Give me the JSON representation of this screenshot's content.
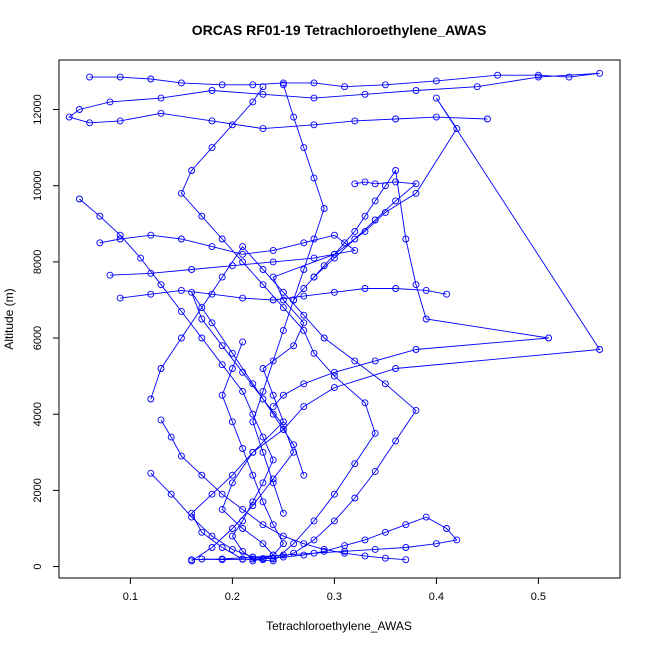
{
  "chart_data": {
    "type": "line",
    "title": "ORCAS RF01-19 Tetrachloroethylene_AWAS",
    "xlabel": "Tetrachloroethylene_AWAS",
    "ylabel": "Altitude (m)",
    "xlim": [
      0.03,
      0.58
    ],
    "ylim": [
      -300,
      13300
    ],
    "xticks": [
      0.1,
      0.2,
      0.3,
      0.4,
      0.5
    ],
    "yticks": [
      0,
      2000,
      4000,
      6000,
      8000,
      10000,
      12000
    ],
    "grid": false,
    "legend": "none",
    "marker": "open-circle",
    "color": "#0000ff",
    "series": [
      {
        "x": [
          0.22,
          0.24,
          0.23,
          0.21,
          0.19,
          0.2,
          0.22,
          0.25,
          0.24,
          0.23,
          0.26,
          0.27,
          0.25,
          0.24,
          0.3,
          0.33,
          0.35,
          0.38,
          0.42,
          0.4,
          0.56,
          0.36,
          0.3,
          0.27,
          0.25,
          0.22,
          0.2,
          0.18,
          0.16,
          0.17,
          0.19,
          0.21,
          0.24,
          0.26,
          0.28,
          0.3,
          0.32,
          0.34,
          0.33,
          0.3,
          0.28,
          0.27,
          0.25,
          0.23,
          0.21,
          0.19,
          0.17,
          0.15,
          0.16,
          0.18,
          0.2,
          0.22,
          0.23
        ],
        "y": [
          150,
          300,
          600,
          1000,
          1500,
          2200,
          3000,
          3800,
          4500,
          5200,
          5800,
          6400,
          7000,
          7600,
          8200,
          8800,
          9300,
          9800,
          11500,
          12300,
          5700,
          5200,
          4700,
          4200,
          3600,
          3000,
          2400,
          1900,
          1400,
          900,
          500,
          200,
          150,
          600,
          1200,
          1900,
          2700,
          3500,
          4300,
          5000,
          5600,
          6200,
          6800,
          7400,
          8000,
          8600,
          9200,
          9800,
          10400,
          11000,
          11600,
          12200,
          12600
        ]
      },
      {
        "x": [
          0.06,
          0.09,
          0.12,
          0.15,
          0.19,
          0.22,
          0.25,
          0.28,
          0.31,
          0.35,
          0.4,
          0.46,
          0.5,
          0.53,
          0.56,
          0.5,
          0.44,
          0.38,
          0.33,
          0.28,
          0.23,
          0.18,
          0.13,
          0.08,
          0.05,
          0.04,
          0.06,
          0.09,
          0.13,
          0.18,
          0.23,
          0.28,
          0.32,
          0.36,
          0.4,
          0.45
        ],
        "y": [
          12850,
          12850,
          12800,
          12700,
          12650,
          12650,
          12700,
          12700,
          12600,
          12650,
          12750,
          12900,
          12900,
          12850,
          12950,
          12850,
          12600,
          12500,
          12400,
          12300,
          12400,
          12500,
          12300,
          12200,
          12000,
          11800,
          11650,
          11700,
          11900,
          11700,
          11500,
          11600,
          11700,
          11750,
          11800,
          11750
        ]
      },
      {
        "x": [
          0.05,
          0.07,
          0.09,
          0.11,
          0.13,
          0.15,
          0.17,
          0.19,
          0.21,
          0.22,
          0.23,
          0.24,
          0.23,
          0.22,
          0.21,
          0.2,
          0.21,
          0.22,
          0.23,
          0.24,
          0.25,
          0.24,
          0.23,
          0.22,
          0.21,
          0.2,
          0.19,
          0.2,
          0.21
        ],
        "y": [
          9650,
          9200,
          8700,
          8100,
          7400,
          6700,
          6000,
          5300,
          4600,
          4000,
          3400,
          2800,
          2200,
          1700,
          1200,
          800,
          400,
          200,
          180,
          300,
          600,
          1100,
          1700,
          2400,
          3100,
          3800,
          4500,
          5200,
          5900
        ]
      },
      {
        "x": [
          0.12,
          0.14,
          0.16,
          0.18,
          0.2,
          0.22,
          0.24,
          0.26,
          0.28,
          0.3,
          0.32,
          0.34,
          0.36,
          0.38,
          0.35,
          0.32,
          0.29,
          0.27,
          0.25,
          0.23,
          0.21,
          0.19,
          0.17,
          0.15,
          0.13,
          0.12
        ],
        "y": [
          2450,
          1900,
          1300,
          800,
          450,
          250,
          200,
          350,
          700,
          1200,
          1800,
          2500,
          3300,
          4100,
          4800,
          5400,
          6000,
          6600,
          7200,
          7800,
          8400,
          7600,
          6800,
          6000,
          5200,
          4400
        ]
      },
      {
        "x": [
          0.17,
          0.19,
          0.21,
          0.23,
          0.25,
          0.27,
          0.29,
          0.31,
          0.33,
          0.35,
          0.37,
          0.39,
          0.41,
          0.42,
          0.4,
          0.37,
          0.34,
          0.31,
          0.28,
          0.25,
          0.22,
          0.19,
          0.16
        ],
        "y": [
          200,
          180,
          190,
          210,
          250,
          300,
          400,
          550,
          700,
          900,
          1100,
          1300,
          1000,
          700,
          600,
          500,
          450,
          400,
          350,
          300,
          250,
          200,
          180
        ]
      },
      {
        "x": [
          0.26,
          0.27,
          0.28,
          0.29,
          0.3,
          0.31,
          0.32,
          0.33,
          0.34,
          0.35,
          0.36,
          0.37,
          0.38,
          0.39,
          0.51,
          0.38,
          0.34,
          0.3,
          0.27,
          0.25,
          0.24
        ],
        "y": [
          7000,
          7300,
          7600,
          7900,
          8200,
          8500,
          8800,
          9200,
          9600,
          10000,
          10400,
          8600,
          7400,
          6500,
          6000,
          5700,
          5400,
          5100,
          4800,
          4500,
          4200
        ]
      },
      {
        "x": [
          0.08,
          0.12,
          0.16,
          0.2,
          0.24,
          0.28,
          0.32,
          0.3,
          0.27,
          0.24,
          0.21,
          0.18,
          0.15,
          0.12,
          0.09,
          0.07
        ],
        "y": [
          7650,
          7700,
          7800,
          7900,
          8000,
          8100,
          8300,
          8700,
          8500,
          8300,
          8200,
          8400,
          8600,
          8700,
          8600,
          8500
        ]
      },
      {
        "x": [
          0.16,
          0.18,
          0.2,
          0.22,
          0.24,
          0.26,
          0.25,
          0.23,
          0.21,
          0.19,
          0.17,
          0.16,
          0.18,
          0.2,
          0.22,
          0.24,
          0.26,
          0.27
        ],
        "y": [
          150,
          500,
          1000,
          1600,
          2300,
          3000,
          3700,
          4400,
          5100,
          5800,
          6500,
          7200,
          6400,
          5600,
          4800,
          4000,
          3200,
          2400
        ]
      },
      {
        "x": [
          0.25,
          0.26,
          0.27,
          0.28,
          0.29,
          0.28,
          0.27,
          0.26,
          0.25,
          0.24,
          0.23,
          0.22,
          0.23,
          0.24,
          0.25
        ],
        "y": [
          12650,
          11800,
          11000,
          10200,
          9400,
          8600,
          7800,
          7000,
          6200,
          5400,
          4600,
          3800,
          3000,
          2200,
          1400
        ]
      },
      {
        "x": [
          0.13,
          0.14,
          0.15,
          0.17,
          0.19,
          0.21,
          0.23,
          0.25,
          0.27,
          0.29,
          0.31,
          0.33,
          0.35,
          0.37
        ],
        "y": [
          3850,
          3400,
          2900,
          2400,
          1900,
          1500,
          1100,
          800,
          600,
          450,
          350,
          280,
          220,
          180
        ]
      },
      {
        "x": [
          0.09,
          0.12,
          0.15,
          0.18,
          0.21,
          0.24,
          0.27,
          0.3,
          0.33,
          0.36,
          0.39,
          0.41
        ],
        "y": [
          7050,
          7150,
          7250,
          7150,
          7050,
          7000,
          7100,
          7200,
          7300,
          7300,
          7250,
          7150
        ]
      },
      {
        "x": [
          0.32,
          0.33,
          0.34,
          0.36,
          0.38,
          0.36,
          0.34,
          0.32,
          0.3,
          0.28
        ],
        "y": [
          10050,
          10100,
          10050,
          10100,
          10050,
          9600,
          9100,
          8600,
          8100,
          7600
        ]
      }
    ]
  }
}
